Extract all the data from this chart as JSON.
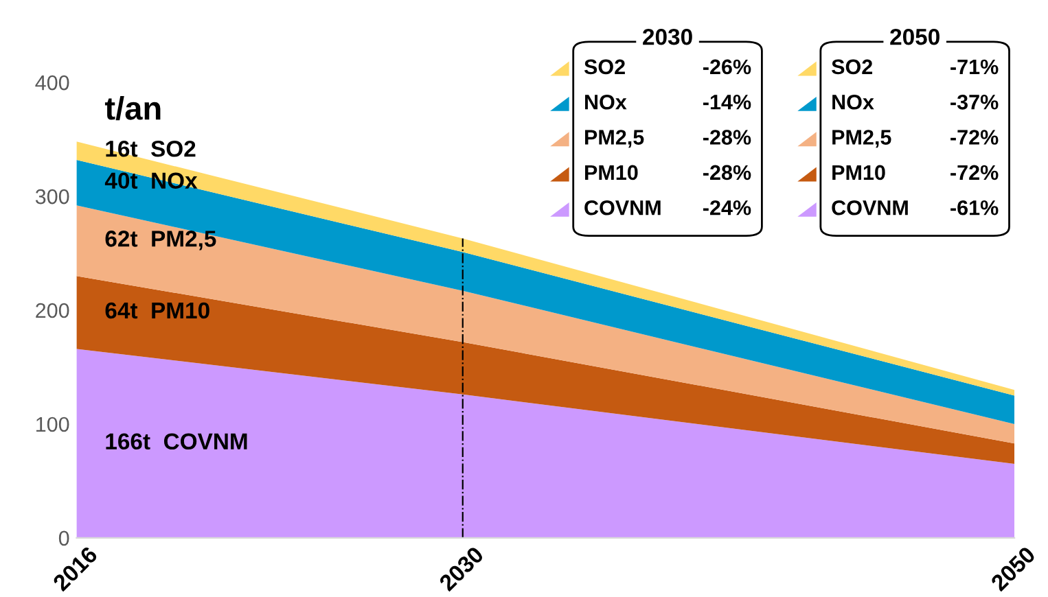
{
  "chart_data": {
    "type": "area",
    "stacked": true,
    "ylabel": "t/an",
    "x": [
      2016,
      2030,
      2050
    ],
    "xlim": [
      2016,
      2050
    ],
    "xticks": [
      2016,
      2030,
      2050
    ],
    "ylim": [
      0,
      400
    ],
    "yticks": [
      0,
      100,
      200,
      300,
      400
    ],
    "grid": false,
    "legend": "top right",
    "series": [
      {
        "name": "COVNM",
        "color": "#cc99ff",
        "values": [
          166,
          126,
          65
        ]
      },
      {
        "name": "PM10",
        "color": "#c55a11",
        "values": [
          64,
          46,
          18
        ]
      },
      {
        "name": "PM2,5",
        "color": "#f4b183",
        "values": [
          62,
          45,
          17
        ]
      },
      {
        "name": "NOx",
        "color": "#0099cc",
        "values": [
          40,
          34,
          25
        ]
      },
      {
        "name": "SO2",
        "color": "#ffd966",
        "values": [
          16,
          12,
          5
        ]
      }
    ],
    "ref_lines": [
      {
        "axis": "x",
        "value": 2030,
        "line_style": "dashed",
        "color": "#000000"
      }
    ],
    "annotations": [
      "166t  COVNM",
      "64t  PM10",
      "62t  PM2,5",
      "40t  NOx",
      "16t  SO2",
      "2030",
      "-26%",
      "-14%",
      "-28%",
      "-28%",
      "-24%",
      "2050",
      "-71%",
      "-37%",
      "-72%",
      "-72%",
      "-61%"
    ]
  }
}
